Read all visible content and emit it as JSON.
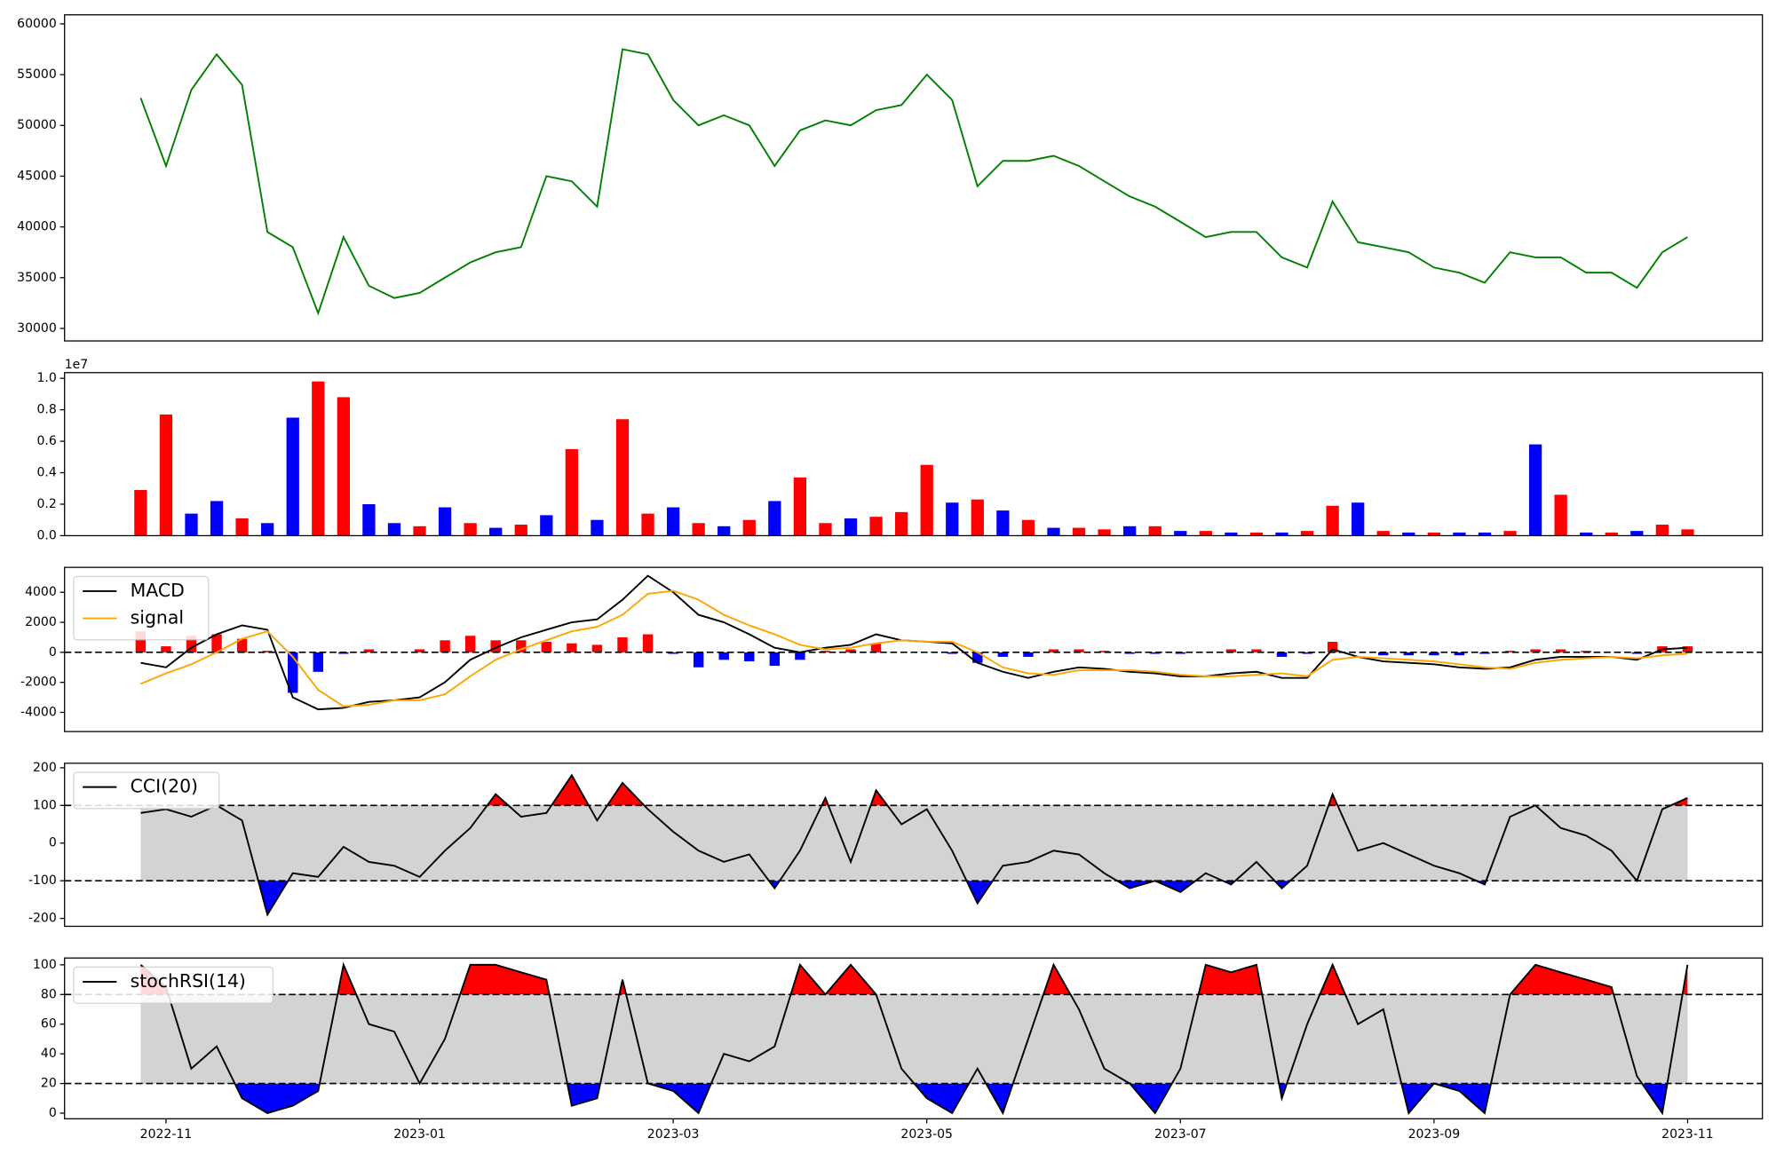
{
  "chart_data": [
    {
      "type": "line",
      "x": [
        -0.2,
        0,
        0.2,
        0.4,
        0.6,
        0.8,
        1,
        1.2,
        1.4,
        1.6,
        1.8,
        2,
        2.2,
        2.4,
        2.6,
        2.8,
        3,
        3.2,
        3.4,
        3.6,
        3.8,
        4,
        4.2,
        4.4,
        4.6,
        4.8,
        5,
        5.2,
        5.4,
        5.6,
        5.8,
        6,
        6.2,
        6.4,
        6.6,
        6.8,
        7,
        7.2,
        7.4,
        7.6,
        7.8,
        8,
        8.2,
        8.4,
        8.6,
        8.8,
        9,
        9.2,
        9.4,
        9.6,
        9.8,
        10,
        10.2,
        10.4,
        10.6,
        10.8,
        11,
        11.2,
        11.4,
        11.6,
        11.8,
        12
      ],
      "series": [
        {
          "color": "green",
          "values": [
            52700,
            46000,
            53500,
            57000,
            54000,
            39500,
            38000,
            31500,
            39000,
            34200,
            33000,
            33500,
            35000,
            36500,
            37500,
            38000,
            45000,
            44500,
            42000,
            57500,
            57000,
            52500,
            50000,
            51000,
            50000,
            46000,
            49500,
            50500,
            50000,
            51500,
            52000,
            55000,
            52500,
            44000,
            46500,
            46500,
            47000,
            46000,
            44500,
            43000,
            42000,
            40500,
            39000,
            39500,
            39500,
            37000,
            36000,
            42500,
            38500,
            38000,
            37500,
            36000,
            35500,
            34500,
            37500,
            37000,
            37000,
            35500,
            35500,
            34000,
            37500,
            39000
          ]
        }
      ],
      "xlim": [
        -0.8,
        12.59
      ],
      "ylim": [
        28770,
        60890
      ],
      "yticks": [
        30000,
        35000,
        40000,
        45000,
        50000,
        55000,
        60000
      ]
    },
    {
      "type": "bar",
      "x": [
        -0.2,
        0,
        0.2,
        0.4,
        0.6,
        0.8,
        1,
        1.2,
        1.4,
        1.6,
        1.8,
        2,
        2.2,
        2.4,
        2.6,
        2.8,
        3,
        3.2,
        3.4,
        3.6,
        3.8,
        4,
        4.2,
        4.4,
        4.6,
        4.8,
        5,
        5.2,
        5.4,
        5.6,
        5.8,
        6,
        6.2,
        6.4,
        6.6,
        6.8,
        7,
        7.2,
        7.4,
        7.6,
        7.8,
        8,
        8.2,
        8.4,
        8.6,
        8.8,
        9,
        9.2,
        9.4,
        9.6,
        9.8,
        10,
        10.2,
        10.4,
        10.6,
        10.8,
        11,
        11.2,
        11.4,
        11.6,
        11.8,
        12
      ],
      "values": [
        2900000,
        7700000,
        1400000,
        2200000,
        1100000,
        800000,
        7500000,
        9800000,
        8800000,
        2000000,
        800000,
        600000,
        1800000,
        800000,
        500000,
        700000,
        1300000,
        5500000,
        1000000,
        7400000,
        1400000,
        1800000,
        800000,
        600000,
        1000000,
        2200000,
        3700000,
        800000,
        1100000,
        1200000,
        1500000,
        4500000,
        2100000,
        2300000,
        1600000,
        1000000,
        500000,
        500000,
        400000,
        600000,
        600000,
        300000,
        300000,
        200000,
        200000,
        200000,
        300000,
        1900000,
        2100000,
        300000,
        200000,
        200000,
        200000,
        200000,
        300000,
        5800000,
        2600000,
        200000,
        200000,
        300000,
        700000,
        400000
      ],
      "colors": [
        "red",
        "red",
        "blue",
        "blue",
        "red",
        "blue",
        "blue",
        "red",
        "red",
        "blue",
        "blue",
        "red",
        "blue",
        "red",
        "blue",
        "red",
        "blue",
        "red",
        "blue",
        "red",
        "red",
        "blue",
        "red",
        "blue",
        "red",
        "blue",
        "red",
        "red",
        "blue",
        "red",
        "red",
        "red",
        "blue",
        "red",
        "blue",
        "red",
        "blue",
        "red",
        "red",
        "blue",
        "red",
        "blue",
        "red",
        "blue",
        "red",
        "blue",
        "red",
        "red",
        "blue",
        "red",
        "blue",
        "red",
        "blue",
        "blue",
        "red",
        "blue",
        "red",
        "blue",
        "red",
        "blue",
        "red",
        "red"
      ],
      "xlim": [
        -0.8,
        12.59
      ],
      "ylim": [
        0,
        10360000
      ],
      "yticks": [
        {
          "value": 0,
          "label": "0.0"
        },
        {
          "value": 2000000,
          "label": "0.2"
        },
        {
          "value": 4000000,
          "label": "0.4"
        },
        {
          "value": 6000000,
          "label": "0.6"
        },
        {
          "value": 8000000,
          "label": "0.8"
        },
        {
          "value": 10000000,
          "label": "1.0"
        }
      ],
      "offset_label": "1e7"
    },
    {
      "type": "macd",
      "x": [
        -0.2,
        0,
        0.2,
        0.4,
        0.6,
        0.8,
        1,
        1.2,
        1.4,
        1.6,
        1.8,
        2,
        2.2,
        2.4,
        2.6,
        2.8,
        3,
        3.2,
        3.4,
        3.6,
        3.8,
        4,
        4.2,
        4.4,
        4.6,
        4.8,
        5,
        5.2,
        5.4,
        5.6,
        5.8,
        6,
        6.2,
        6.4,
        6.6,
        6.8,
        7,
        7.2,
        7.4,
        7.6,
        7.8,
        8,
        8.2,
        8.4,
        8.6,
        8.8,
        9,
        9.2,
        9.4,
        9.6,
        9.8,
        10,
        10.2,
        10.4,
        10.6,
        10.8,
        11,
        11.2,
        11.4,
        11.6,
        11.8,
        12
      ],
      "series": [
        {
          "name": "MACD",
          "color": "black",
          "values": [
            -700,
            -1000,
            300,
            1200,
            1800,
            1500,
            -3000,
            -3800,
            -3700,
            -3300,
            -3200,
            -3000,
            -2000,
            -500,
            300,
            1000,
            1500,
            2000,
            2200,
            3500,
            5100,
            4000,
            2500,
            2000,
            1200,
            300,
            0,
            300,
            500,
            1200,
            800,
            700,
            600,
            -700,
            -1300,
            -1700,
            -1300,
            -1000,
            -1100,
            -1300,
            -1400,
            -1600,
            -1600,
            -1400,
            -1300,
            -1700,
            -1700,
            200,
            -300,
            -600,
            -700,
            -800,
            -1000,
            -1100,
            -1000,
            -500,
            -300,
            -300,
            -300,
            -500,
            200,
            300
          ]
        },
        {
          "name": "signal",
          "color": "orange",
          "values": [
            -2100,
            -1400,
            -800,
            0,
            900,
            1400,
            -300,
            -2500,
            -3600,
            -3500,
            -3200,
            -3200,
            -2800,
            -1600,
            -500,
            200,
            800,
            1400,
            1700,
            2500,
            3900,
            4100,
            3500,
            2500,
            1800,
            1200,
            500,
            200,
            300,
            600,
            800,
            700,
            700,
            0,
            -1000,
            -1400,
            -1500,
            -1200,
            -1200,
            -1200,
            -1300,
            -1500,
            -1600,
            -1600,
            -1500,
            -1400,
            -1600,
            -500,
            -300,
            -400,
            -500,
            -600,
            -800,
            -1000,
            -1100,
            -700,
            -500,
            -400,
            -300,
            -400,
            -200,
            -100
          ]
        }
      ],
      "histogram": {
        "positive_color": "red",
        "negative_color": "blue",
        "values": [
          1400,
          400,
          1100,
          1200,
          900,
          100,
          -2700,
          -1300,
          -100,
          200,
          0,
          200,
          800,
          1100,
          800,
          800,
          700,
          600,
          500,
          1000,
          1200,
          -100,
          -1000,
          -500,
          -600,
          -900,
          -500,
          100,
          200,
          600,
          0,
          0,
          -100,
          -700,
          -300,
          -300,
          200,
          200,
          100,
          -100,
          -100,
          -100,
          0,
          200,
          200,
          -300,
          -100,
          700,
          0,
          -200,
          -200,
          -200,
          -200,
          -100,
          100,
          200,
          200,
          100,
          0,
          -100,
          400,
          400
        ]
      },
      "hline": 0,
      "xlim": [
        -0.8,
        12.59
      ],
      "ylim": [
        -5280,
        5660
      ],
      "yticks": [
        -4000,
        -2000,
        0,
        2000,
        4000
      ]
    },
    {
      "type": "oscillator",
      "x": [
        -0.2,
        0,
        0.2,
        0.4,
        0.6,
        0.8,
        1,
        1.2,
        1.4,
        1.6,
        1.8,
        2,
        2.2,
        2.4,
        2.6,
        2.8,
        3,
        3.2,
        3.4,
        3.6,
        3.8,
        4,
        4.2,
        4.4,
        4.6,
        4.8,
        5,
        5.2,
        5.4,
        5.6,
        5.8,
        6,
        6.2,
        6.4,
        6.6,
        6.8,
        7,
        7.2,
        7.4,
        7.6,
        7.8,
        8,
        8.2,
        8.4,
        8.6,
        8.8,
        9,
        9.2,
        9.4,
        9.6,
        9.8,
        10,
        10.2,
        10.4,
        10.6,
        10.8,
        11,
        11.2,
        11.4,
        11.6,
        11.8,
        12
      ],
      "series": [
        {
          "name": "CCI(20)",
          "color": "black",
          "values": [
            80,
            90,
            70,
            100,
            60,
            -190,
            -80,
            -90,
            -10,
            -50,
            -60,
            -90,
            -20,
            40,
            130,
            70,
            80,
            180,
            60,
            160,
            90,
            30,
            -20,
            -50,
            -30,
            -120,
            -20,
            120,
            -50,
            140,
            50,
            90,
            -20,
            -160,
            -60,
            -50,
            -20,
            -30,
            -80,
            -120,
            -100,
            -130,
            -80,
            -110,
            -50,
            -120,
            -60,
            130,
            -20,
            0,
            -30,
            -60,
            -80,
            -110,
            70,
            100,
            40,
            20,
            -20,
            -100,
            90,
            120
          ]
        }
      ],
      "upper": 100,
      "lower": -100,
      "band_color": "lightgray",
      "upper_color": "red",
      "lower_color": "blue",
      "xlim": [
        -0.8,
        12.59
      ],
      "ylim": [
        -221,
        212
      ],
      "yticks": [
        -200,
        -100,
        0,
        100,
        200
      ]
    },
    {
      "type": "oscillator",
      "x": [
        -0.2,
        0,
        0.2,
        0.4,
        0.6,
        0.8,
        1,
        1.2,
        1.4,
        1.6,
        1.8,
        2,
        2.2,
        2.4,
        2.6,
        2.8,
        3,
        3.2,
        3.4,
        3.6,
        3.8,
        4,
        4.2,
        4.4,
        4.6,
        4.8,
        5,
        5.2,
        5.4,
        5.6,
        5.8,
        6,
        6.2,
        6.4,
        6.6,
        6.8,
        7,
        7.2,
        7.4,
        7.6,
        7.8,
        8,
        8.2,
        8.4,
        8.6,
        8.8,
        9,
        9.2,
        9.4,
        9.6,
        9.8,
        10,
        10.2,
        10.4,
        10.6,
        10.8,
        11,
        11.2,
        11.4,
        11.6,
        11.8,
        12
      ],
      "series": [
        {
          "name": "stochRSI(14)",
          "color": "black",
          "values": [
            100,
            85,
            30,
            45,
            10,
            0,
            5,
            15,
            100,
            60,
            55,
            20,
            50,
            100,
            100,
            95,
            90,
            5,
            10,
            90,
            20,
            15,
            0,
            40,
            35,
            45,
            100,
            80,
            100,
            80,
            30,
            10,
            0,
            30,
            0,
            50,
            100,
            70,
            30,
            20,
            0,
            30,
            100,
            95,
            100,
            10,
            60,
            100,
            60,
            70,
            0,
            20,
            15,
            0,
            80,
            100,
            95,
            90,
            85,
            25,
            0,
            100
          ]
        }
      ],
      "upper": 80,
      "lower": 20,
      "band_color": "lightgray",
      "upper_color": "red",
      "lower_color": "blue",
      "xlim": [
        -0.8,
        12.59
      ],
      "ylim": [
        -3.8,
        104.6
      ],
      "yticks": [
        0,
        20,
        40,
        60,
        80,
        100
      ],
      "xticks": [
        {
          "value": 0,
          "label": "2022-11"
        },
        {
          "value": 2,
          "label": "2023-01"
        },
        {
          "value": 4,
          "label": "2023-03"
        },
        {
          "value": 6,
          "label": "2023-05"
        },
        {
          "value": 8,
          "label": "2023-07"
        },
        {
          "value": 10,
          "label": "2023-09"
        },
        {
          "value": 12,
          "label": "2023-11"
        }
      ]
    }
  ]
}
